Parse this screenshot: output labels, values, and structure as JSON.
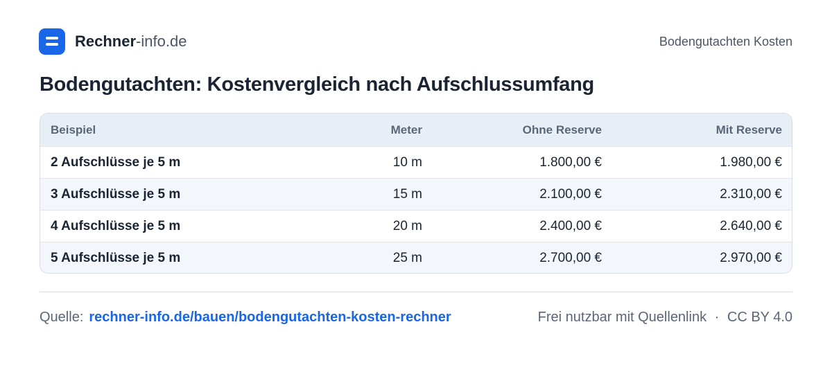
{
  "header": {
    "brand_bold": "Rechner",
    "brand_rest": "-info.de",
    "page_label": "Bodengutachten Kosten"
  },
  "title": "Bodengutachten: Kostenvergleich nach Aufschlussumfang",
  "table": {
    "columns": [
      "Beispiel",
      "Meter",
      "Ohne Reserve",
      "Mit Reserve"
    ],
    "rows": [
      [
        "2 Aufschlüsse je 5 m",
        "10 m",
        "1.800,00 €",
        "1.980,00 €"
      ],
      [
        "3 Aufschlüsse je 5 m",
        "15 m",
        "2.100,00 €",
        "2.310,00 €"
      ],
      [
        "4 Aufschlüsse je 5 m",
        "20 m",
        "2.400,00 €",
        "2.640,00 €"
      ],
      [
        "5 Aufschlüsse je 5 m",
        "25 m",
        "2.700,00 €",
        "2.970,00 €"
      ]
    ]
  },
  "footer": {
    "source_label": "Quelle:",
    "source_link": "rechner-info.de/bauen/bodengutachten-kosten-rechner",
    "license_note": "Frei nutzbar mit Quellenlink",
    "separator": "·",
    "license": "CC BY 4.0"
  }
}
